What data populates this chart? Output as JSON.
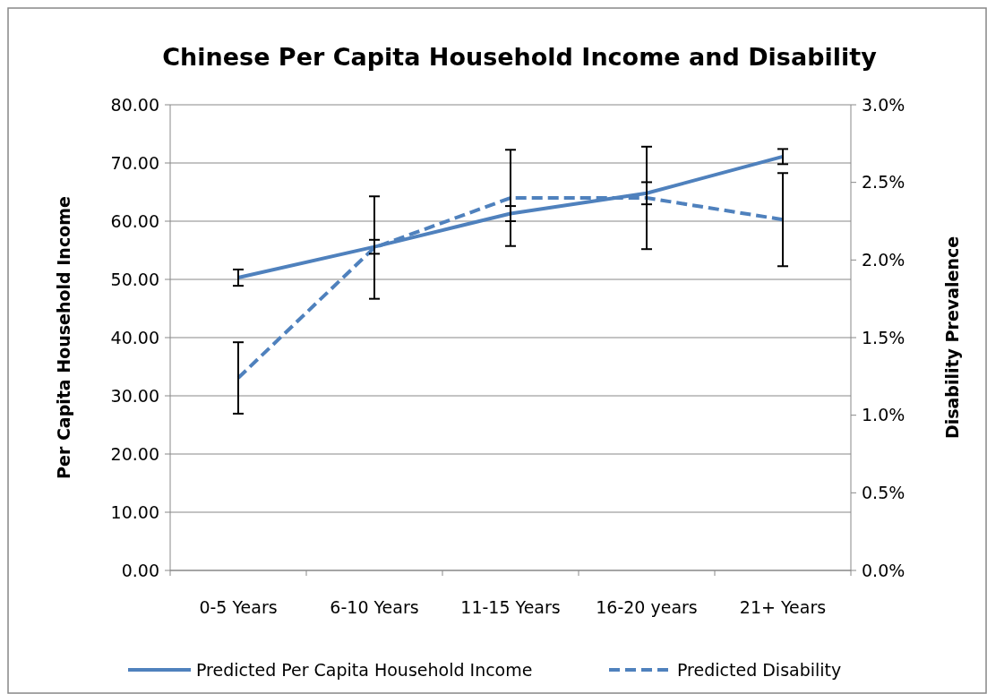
{
  "chart_data": {
    "type": "line",
    "title": "Chinese Per Capita Household Income and Disability",
    "ylabel": "Per Capita Household Income",
    "y2label": "Disability Prevalence",
    "categories": [
      "0-5 Years",
      "6-10 Years",
      "11-15 Years",
      "16-20 years",
      "21+ Years"
    ],
    "series": [
      {
        "name": "Predicted Per Capita Household Income",
        "color": "#4f81bd",
        "values": [
          50.3,
          55.6,
          61.3,
          64.8,
          71.1
        ],
        "errors": [
          1.4,
          1.2,
          1.3,
          1.9,
          1.3
        ],
        "line_style": "solid"
      },
      {
        "name": "Predicted Disability",
        "color": "#4f81bd",
        "axis": "y2",
        "values": [
          1.24,
          2.08,
          2.4,
          2.4,
          2.26
        ],
        "errors": [
          0.23,
          0.33,
          0.31,
          0.33,
          0.3
        ],
        "line_style": "dashed"
      }
    ],
    "ylim": [
      0,
      80
    ],
    "yticks": [
      {
        "value": 0,
        "label": "0.00"
      },
      {
        "value": 10,
        "label": "10.00"
      },
      {
        "value": 20,
        "label": "20.00"
      },
      {
        "value": 30,
        "label": "30.00"
      },
      {
        "value": 40,
        "label": "40.00"
      },
      {
        "value": 50,
        "label": "50.00"
      },
      {
        "value": 60,
        "label": "60.00"
      },
      {
        "value": 70,
        "label": "70.00"
      },
      {
        "value": 80,
        "label": "80.00"
      }
    ],
    "y2lim": [
      0,
      3
    ],
    "y2ticks": [
      {
        "value": 0,
        "label": "0.0%"
      },
      {
        "value": 0.5,
        "label": "0.5%"
      },
      {
        "value": 1,
        "label": "1.0%"
      },
      {
        "value": 1.5,
        "label": "1.5%"
      },
      {
        "value": 2,
        "label": "2.0%"
      },
      {
        "value": 2.5,
        "label": "2.5%"
      },
      {
        "value": 3,
        "label": "3.0%"
      }
    ],
    "grid": "y",
    "legend": "bottom",
    "marker": "none"
  }
}
